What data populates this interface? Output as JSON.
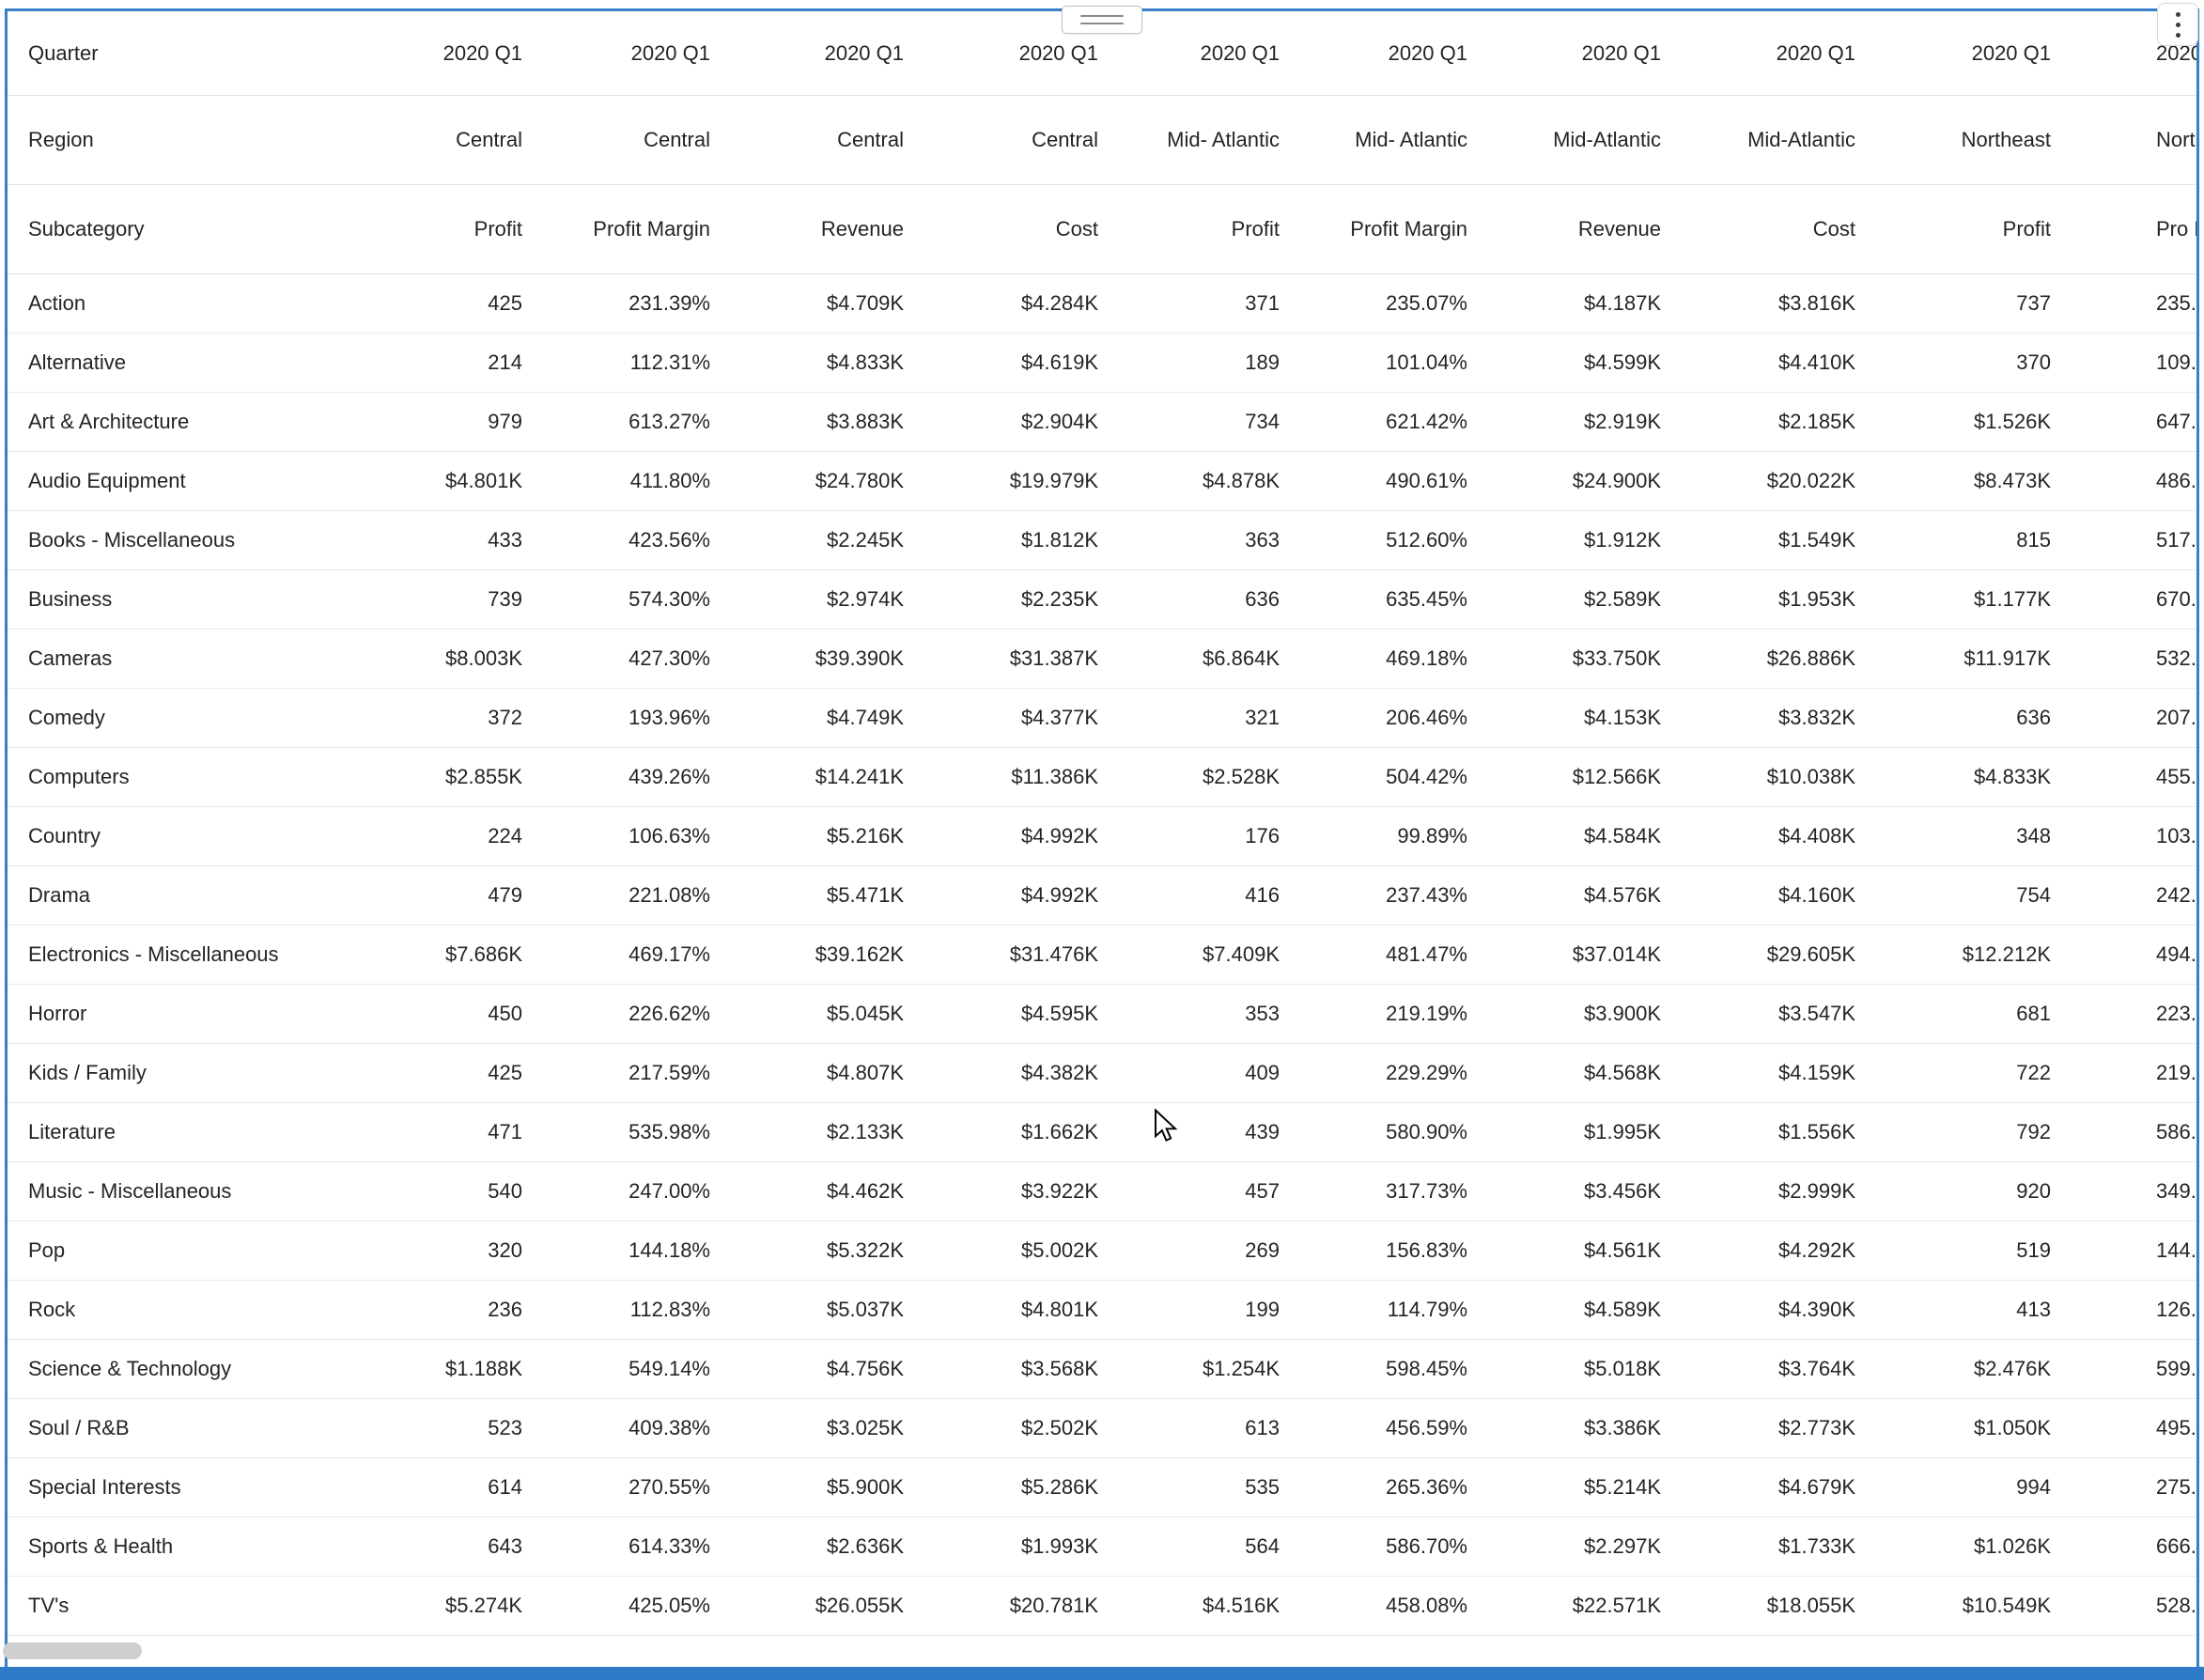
{
  "colors": {
    "selection_border": "#3a7dc9",
    "bottom_bar": "#2e7ac8",
    "row_separator": "#e9e9e9",
    "scrollbar_thumb": "#cfcfcf",
    "text": "#252423"
  },
  "widget": {
    "drag_handle_icon": "drag-handle",
    "more_options_icon": "kebab-menu"
  },
  "matrix": {
    "corner_labels": {
      "quarter": "Quarter",
      "region": "Region",
      "subcategory": "Subcategory"
    },
    "quarter_row": [
      "2020 Q1",
      "2020 Q1",
      "2020 Q1",
      "2020 Q1",
      "2020 Q1",
      "2020 Q1",
      "2020 Q1",
      "2020 Q1",
      "2020 Q1",
      "2020"
    ],
    "region_row": [
      "Central",
      "Central",
      "Central",
      "Central",
      "Mid-\nAtlantic",
      "Mid-\nAtlantic",
      "Mid-Atlantic",
      "Mid-Atlantic",
      "Northeast",
      "Northe"
    ],
    "measure_row": [
      "Profit",
      "Profit\nMargin",
      "Revenue",
      "Cost",
      "Profit",
      "Profit\nMargin",
      "Revenue",
      "Cost",
      "Profit",
      "Pro\nMar"
    ],
    "rows": [
      {
        "subcategory": "Action",
        "values": [
          "425",
          "231.39%",
          "$4.709K",
          "$4.284K",
          "371",
          "235.07%",
          "$4.187K",
          "$3.816K",
          "737",
          "235."
        ]
      },
      {
        "subcategory": "Alternative",
        "values": [
          "214",
          "112.31%",
          "$4.833K",
          "$4.619K",
          "189",
          "101.04%",
          "$4.599K",
          "$4.410K",
          "370",
          "109."
        ]
      },
      {
        "subcategory": "Art & Architecture",
        "values": [
          "979",
          "613.27%",
          "$3.883K",
          "$2.904K",
          "734",
          "621.42%",
          "$2.919K",
          "$2.185K",
          "$1.526K",
          "647."
        ]
      },
      {
        "subcategory": "Audio Equipment",
        "values": [
          "$4.801K",
          "411.80%",
          "$24.780K",
          "$19.979K",
          "$4.878K",
          "490.61%",
          "$24.900K",
          "$20.022K",
          "$8.473K",
          "486."
        ]
      },
      {
        "subcategory": "Books - Miscellaneous",
        "values": [
          "433",
          "423.56%",
          "$2.245K",
          "$1.812K",
          "363",
          "512.60%",
          "$1.912K",
          "$1.549K",
          "815",
          "517."
        ]
      },
      {
        "subcategory": "Business",
        "values": [
          "739",
          "574.30%",
          "$2.974K",
          "$2.235K",
          "636",
          "635.45%",
          "$2.589K",
          "$1.953K",
          "$1.177K",
          "670."
        ]
      },
      {
        "subcategory": "Cameras",
        "values": [
          "$8.003K",
          "427.30%",
          "$39.390K",
          "$31.387K",
          "$6.864K",
          "469.18%",
          "$33.750K",
          "$26.886K",
          "$11.917K",
          "532."
        ]
      },
      {
        "subcategory": "Comedy",
        "values": [
          "372",
          "193.96%",
          "$4.749K",
          "$4.377K",
          "321",
          "206.46%",
          "$4.153K",
          "$3.832K",
          "636",
          "207."
        ]
      },
      {
        "subcategory": "Computers",
        "values": [
          "$2.855K",
          "439.26%",
          "$14.241K",
          "$11.386K",
          "$2.528K",
          "504.42%",
          "$12.566K",
          "$10.038K",
          "$4.833K",
          "455."
        ]
      },
      {
        "subcategory": "Country",
        "values": [
          "224",
          "106.63%",
          "$5.216K",
          "$4.992K",
          "176",
          "99.89%",
          "$4.584K",
          "$4.408K",
          "348",
          "103."
        ]
      },
      {
        "subcategory": "Drama",
        "values": [
          "479",
          "221.08%",
          "$5.471K",
          "$4.992K",
          "416",
          "237.43%",
          "$4.576K",
          "$4.160K",
          "754",
          "242."
        ]
      },
      {
        "subcategory": "Electronics - Miscellaneous",
        "values": [
          "$7.686K",
          "469.17%",
          "$39.162K",
          "$31.476K",
          "$7.409K",
          "481.47%",
          "$37.014K",
          "$29.605K",
          "$12.212K",
          "494."
        ]
      },
      {
        "subcategory": "Horror",
        "values": [
          "450",
          "226.62%",
          "$5.045K",
          "$4.595K",
          "353",
          "219.19%",
          "$3.900K",
          "$3.547K",
          "681",
          "223."
        ]
      },
      {
        "subcategory": "Kids / Family",
        "values": [
          "425",
          "217.59%",
          "$4.807K",
          "$4.382K",
          "409",
          "229.29%",
          "$4.568K",
          "$4.159K",
          "722",
          "219."
        ]
      },
      {
        "subcategory": "Literature",
        "values": [
          "471",
          "535.98%",
          "$2.133K",
          "$1.662K",
          "439",
          "580.90%",
          "$1.995K",
          "$1.556K",
          "792",
          "586."
        ]
      },
      {
        "subcategory": "Music - Miscellaneous",
        "values": [
          "540",
          "247.00%",
          "$4.462K",
          "$3.922K",
          "457",
          "317.73%",
          "$3.456K",
          "$2.999K",
          "920",
          "349."
        ]
      },
      {
        "subcategory": "Pop",
        "values": [
          "320",
          "144.18%",
          "$5.322K",
          "$5.002K",
          "269",
          "156.83%",
          "$4.561K",
          "$4.292K",
          "519",
          "144."
        ]
      },
      {
        "subcategory": "Rock",
        "values": [
          "236",
          "112.83%",
          "$5.037K",
          "$4.801K",
          "199",
          "114.79%",
          "$4.589K",
          "$4.390K",
          "413",
          "126."
        ]
      },
      {
        "subcategory": "Science & Technology",
        "values": [
          "$1.188K",
          "549.14%",
          "$4.756K",
          "$3.568K",
          "$1.254K",
          "598.45%",
          "$5.018K",
          "$3.764K",
          "$2.476K",
          "599."
        ]
      },
      {
        "subcategory": "Soul / R&B",
        "values": [
          "523",
          "409.38%",
          "$3.025K",
          "$2.502K",
          "613",
          "456.59%",
          "$3.386K",
          "$2.773K",
          "$1.050K",
          "495."
        ]
      },
      {
        "subcategory": "Special Interests",
        "values": [
          "614",
          "270.55%",
          "$5.900K",
          "$5.286K",
          "535",
          "265.36%",
          "$5.214K",
          "$4.679K",
          "994",
          "275."
        ]
      },
      {
        "subcategory": "Sports & Health",
        "values": [
          "643",
          "614.33%",
          "$2.636K",
          "$1.993K",
          "564",
          "586.70%",
          "$2.297K",
          "$1.733K",
          "$1.026K",
          "666."
        ]
      },
      {
        "subcategory": "TV's",
        "values": [
          "$5.274K",
          "425.05%",
          "$26.055K",
          "$20.781K",
          "$4.516K",
          "458.08%",
          "$22.571K",
          "$18.055K",
          "$10.549K",
          "528."
        ]
      }
    ]
  }
}
